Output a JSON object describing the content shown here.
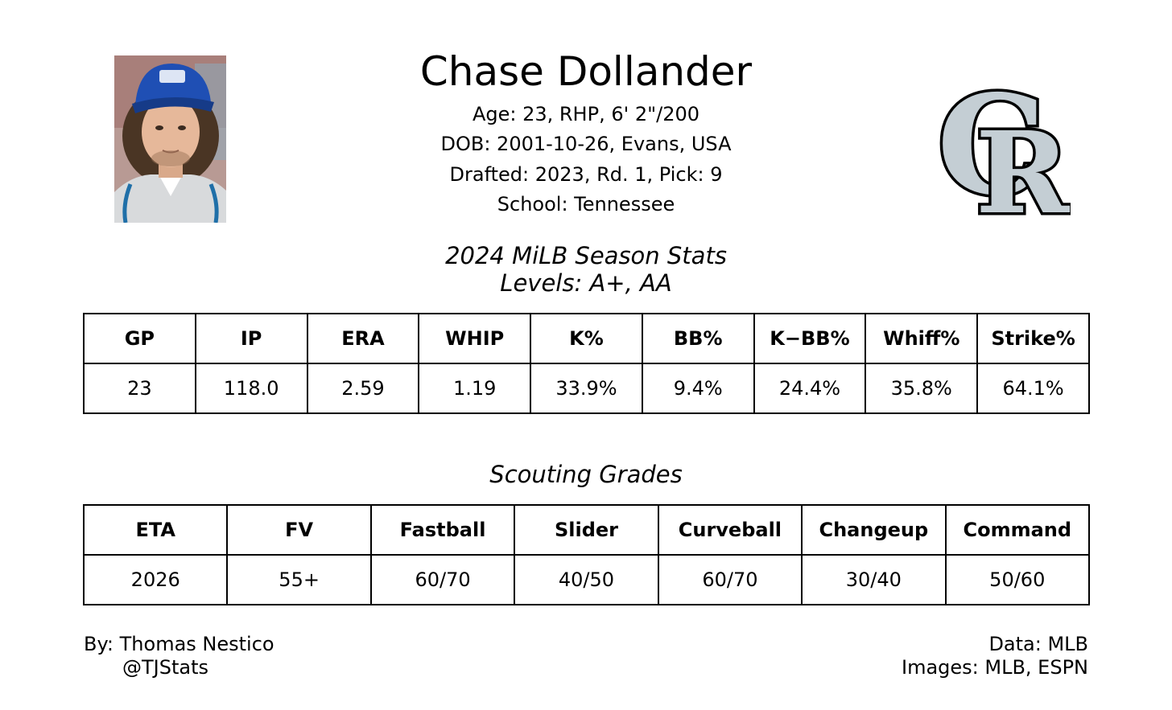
{
  "player": {
    "name": "Chase Dollander",
    "age_line": "Age: 23, RHP, 6' 2\"/200",
    "dob_line": "DOB: 2001-10-26, Evans, USA",
    "draft_line": "Drafted: 2023, Rd. 1, Pick: 9",
    "school_line": "School: Tennessee"
  },
  "stats": {
    "title": "2024 MiLB Season Stats",
    "levels": "Levels: A+, AA",
    "headers": [
      "GP",
      "IP",
      "ERA",
      "WHIP",
      "K%",
      "BB%",
      "K−BB%",
      "Whiff%",
      "Strike%"
    ],
    "values": [
      "23",
      "118.0",
      "2.59",
      "1.19",
      "33.9%",
      "9.4%",
      "24.4%",
      "35.8%",
      "64.1%"
    ]
  },
  "grades": {
    "title": "Scouting Grades",
    "headers": [
      "ETA",
      "FV",
      "Fastball",
      "Slider",
      "Curveball",
      "Changeup",
      "Command"
    ],
    "values": [
      "2026",
      "55+",
      "60/70",
      "40/50",
      "60/70",
      "30/40",
      "50/60"
    ]
  },
  "footer": {
    "author": "By: Thomas Nestico",
    "handle": "@TJStats",
    "data_source": "Data: MLB",
    "image_source": "Images: MLB, ESPN"
  },
  "colors": {
    "logo_fill": "#C4CED4",
    "logo_outline": "#000000",
    "cap": "#1f4fb4",
    "jersey": "#d8dadc"
  }
}
